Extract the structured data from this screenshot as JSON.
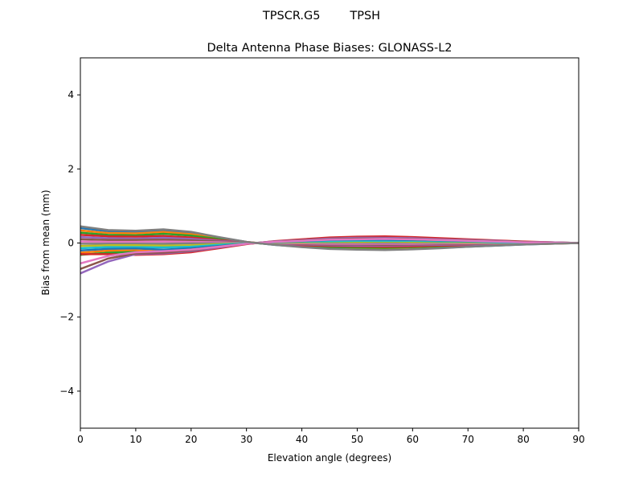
{
  "chart_data": {
    "type": "line",
    "suptitle": "TPSCR.G5        TPSH",
    "title": "Delta Antenna Phase Biases: GLONASS-L2",
    "xlabel": "Elevation angle (degrees)",
    "ylabel": "Bias from mean (mm)",
    "xlim": [
      0,
      90
    ],
    "ylim": [
      -5,
      5
    ],
    "xticks": [
      "0",
      "10",
      "20",
      "30",
      "40",
      "50",
      "60",
      "70",
      "80",
      "90"
    ],
    "yticks": [
      "−4",
      "−2",
      "0",
      "2",
      "4"
    ],
    "grid": false,
    "colors": [
      "#1f77b4",
      "#ff7f0e",
      "#2ca02c",
      "#d62728",
      "#9467bd",
      "#8c564b",
      "#e377c2",
      "#7f7f7f",
      "#bcbd22",
      "#17becf"
    ],
    "x": [
      0,
      5,
      10,
      15,
      20,
      25,
      30,
      35,
      40,
      45,
      50,
      55,
      60,
      65,
      70,
      75,
      80,
      85,
      90
    ],
    "series": [
      {
        "values": [
          0.4,
          0.32,
          0.3,
          0.35,
          0.28,
          0.15,
          0.03,
          -0.05,
          -0.1,
          -0.15,
          -0.17,
          -0.18,
          -0.16,
          -0.13,
          -0.1,
          -0.07,
          -0.04,
          -0.02,
          0
        ]
      },
      {
        "values": [
          0.34,
          0.27,
          0.26,
          0.3,
          0.24,
          0.13,
          0.03,
          -0.04,
          -0.09,
          -0.13,
          -0.14,
          -0.15,
          -0.14,
          -0.11,
          -0.09,
          -0.06,
          -0.03,
          -0.02,
          0
        ]
      },
      {
        "values": [
          0.28,
          0.22,
          0.21,
          0.25,
          0.2,
          0.11,
          0.02,
          -0.04,
          -0.07,
          -0.11,
          -0.12,
          -0.13,
          -0.11,
          -0.09,
          -0.07,
          -0.05,
          -0.03,
          -0.01,
          0
        ]
      },
      {
        "values": [
          0.22,
          0.18,
          0.17,
          0.19,
          0.15,
          0.08,
          0.02,
          -0.03,
          -0.06,
          -0.08,
          -0.09,
          -0.1,
          -0.09,
          -0.07,
          -0.06,
          -0.04,
          -0.02,
          -0.01,
          0
        ]
      },
      {
        "values": [
          0.16,
          0.13,
          0.12,
          0.14,
          0.11,
          0.06,
          0.01,
          -0.02,
          -0.04,
          -0.06,
          -0.07,
          -0.07,
          -0.06,
          -0.05,
          -0.04,
          -0.03,
          -0.02,
          -0.01,
          0
        ]
      },
      {
        "values": [
          0.1,
          0.08,
          0.08,
          0.09,
          0.07,
          0.04,
          0.01,
          -0.01,
          -0.03,
          -0.04,
          -0.04,
          -0.05,
          -0.04,
          -0.03,
          -0.03,
          -0.02,
          -0.01,
          0,
          0
        ]
      },
      {
        "values": [
          0.04,
          0.03,
          0.03,
          0.04,
          0.03,
          0.02,
          0,
          -0.01,
          -0.01,
          -0.02,
          -0.02,
          -0.02,
          -0.02,
          -0.01,
          -0.01,
          -0.01,
          0,
          0,
          0
        ]
      },
      {
        "values": [
          -0.02,
          -0.02,
          -0.02,
          -0.02,
          -0.01,
          -0.01,
          0,
          0,
          0.01,
          0.01,
          0.01,
          0.01,
          0.01,
          0.01,
          0.01,
          0,
          0,
          0,
          0
        ]
      },
      {
        "values": [
          -0.08,
          -0.06,
          -0.06,
          -0.07,
          -0.06,
          -0.03,
          -0.01,
          0.01,
          0.02,
          0.03,
          0.03,
          0.04,
          0.03,
          0.03,
          0.02,
          0.01,
          0.01,
          0,
          0
        ]
      },
      {
        "values": [
          -0.14,
          -0.11,
          -0.11,
          -0.12,
          -0.1,
          -0.05,
          -0.01,
          0.02,
          0.04,
          0.05,
          0.06,
          0.06,
          0.06,
          0.05,
          0.04,
          0.02,
          0.01,
          0.01,
          0
        ]
      },
      {
        "values": [
          -0.2,
          -0.16,
          -0.15,
          -0.18,
          -0.14,
          -0.08,
          -0.02,
          0.03,
          0.05,
          0.08,
          0.09,
          0.09,
          0.08,
          0.07,
          0.05,
          0.04,
          0.02,
          0.01,
          0
        ]
      },
      {
        "values": [
          -0.26,
          -0.21,
          -0.2,
          -0.23,
          -0.18,
          -0.1,
          -0.02,
          0.03,
          0.07,
          0.1,
          0.11,
          0.12,
          0.1,
          0.08,
          0.07,
          0.05,
          0.03,
          0.01,
          0
        ]
      },
      {
        "values": [
          -0.32,
          -0.26,
          -0.24,
          -0.28,
          -0.22,
          -0.12,
          -0.02,
          0.04,
          0.08,
          0.12,
          0.14,
          0.14,
          0.13,
          0.1,
          0.08,
          0.06,
          0.03,
          0.02,
          0
        ]
      },
      {
        "values": [
          -0.3,
          -0.3,
          -0.32,
          -0.3,
          -0.25,
          -0.14,
          -0.03,
          0.05,
          0.1,
          0.15,
          0.17,
          0.18,
          0.16,
          0.13,
          0.1,
          0.07,
          0.04,
          0.02,
          0
        ]
      },
      {
        "values": [
          -0.82,
          -0.5,
          -0.3,
          -0.28,
          -0.22,
          -0.12,
          -0.02,
          0.04,
          0.08,
          0.12,
          0.14,
          0.14,
          0.13,
          0.1,
          0.08,
          0.06,
          0.03,
          0.02,
          0
        ]
      },
      {
        "values": [
          -0.7,
          -0.42,
          -0.28,
          -0.26,
          -0.2,
          -0.1,
          -0.02,
          0.03,
          0.07,
          0.1,
          0.12,
          0.12,
          0.11,
          0.09,
          0.07,
          0.05,
          0.03,
          0.01,
          0
        ]
      },
      {
        "values": [
          -0.55,
          -0.35,
          -0.25,
          -0.22,
          -0.18,
          -0.1,
          -0.02,
          0.03,
          0.06,
          0.09,
          0.1,
          0.11,
          0.1,
          0.08,
          0.06,
          0.04,
          0.02,
          0.01,
          0
        ]
      },
      {
        "values": [
          0.45,
          0.35,
          0.33,
          0.37,
          0.3,
          0.16,
          0.03,
          -0.05,
          -0.11,
          -0.16,
          -0.18,
          -0.19,
          -0.17,
          -0.14,
          -0.1,
          -0.07,
          -0.04,
          -0.02,
          0
        ]
      }
    ]
  }
}
